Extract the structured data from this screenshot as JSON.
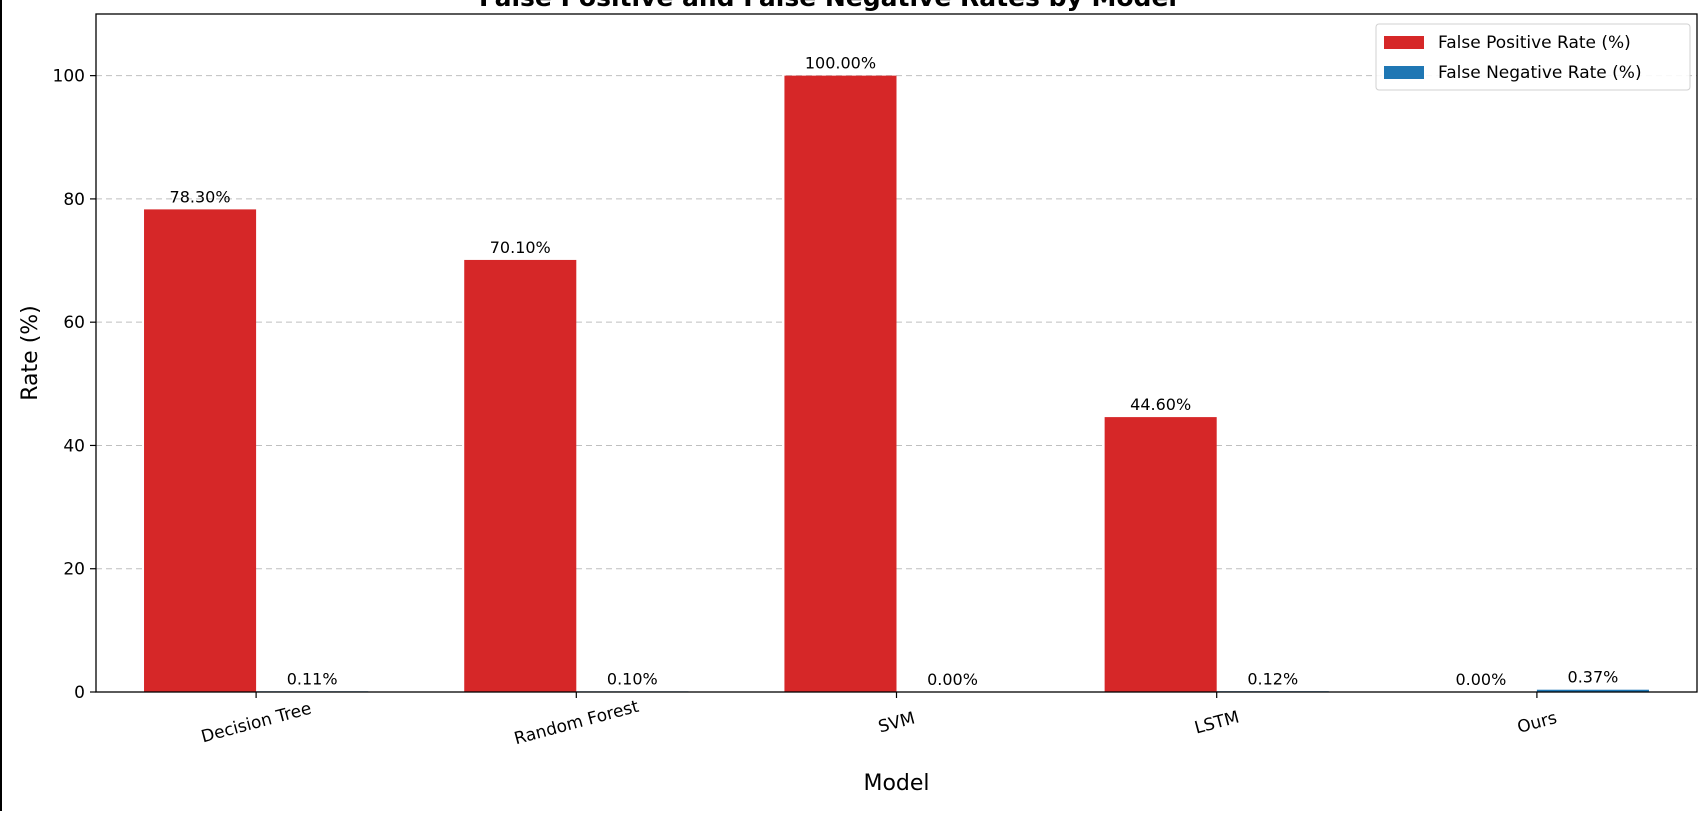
{
  "chart_data": {
    "type": "bar",
    "title": "False Positive and False Negative Rates by Model",
    "xlabel": "Model",
    "ylabel": "Rate (%)",
    "categories": [
      "Decision Tree",
      "Random Forest",
      "SVM",
      "LSTM",
      "Ours"
    ],
    "series": [
      {
        "name": "False Positive Rate (%)",
        "color": "#d62728",
        "values": [
          78.3,
          70.1,
          100.0,
          44.6,
          0.0
        ],
        "labels": [
          "78.30%",
          "70.10%",
          "100.00%",
          "44.60%",
          "0.00%"
        ]
      },
      {
        "name": "False Negative Rate (%)",
        "color": "#1f77b4",
        "values": [
          0.11,
          0.1,
          0.0,
          0.12,
          0.37
        ],
        "labels": [
          "0.11%",
          "0.10%",
          "0.00%",
          "0.12%",
          "0.37%"
        ]
      }
    ],
    "ylim": [
      0,
      110
    ],
    "yticks": [
      0,
      20,
      40,
      60,
      80,
      100
    ],
    "grid": "y-dashed",
    "legend_position": "top-right",
    "x_tick_rotation": -15
  }
}
